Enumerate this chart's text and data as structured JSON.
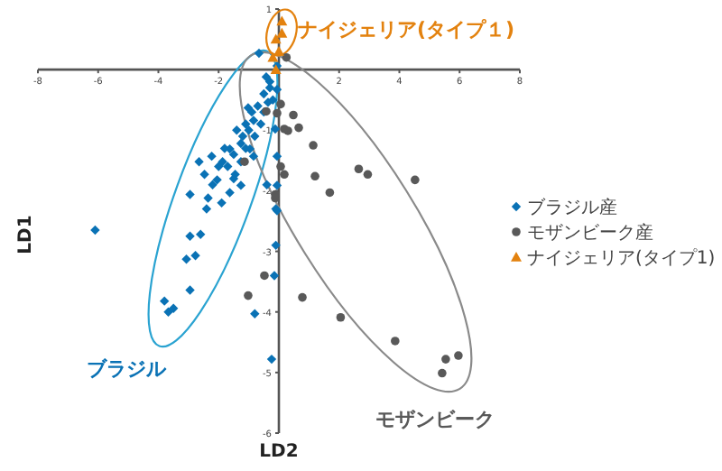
{
  "chart_data": {
    "type": "scatter",
    "xlabel": "LD2",
    "ylabel": "LD1",
    "xlim": [
      -8,
      8
    ],
    "ylim": [
      -6,
      1
    ],
    "xticks": [
      -8,
      -6,
      -4,
      -2,
      2,
      4,
      6,
      8
    ],
    "yticks": [
      1,
      -1,
      -2,
      -3,
      -4,
      -5,
      -6
    ],
    "grid": false,
    "legend": "right",
    "annotations": [
      "ナイジェリア(タイプ１)",
      "ブラジル",
      "モザンビーク"
    ],
    "series": [
      {
        "name": "ブラジル産",
        "color": "#0a72b5",
        "marker": "diamond",
        "x": [
          -6.1,
          -2.95,
          -2.6,
          -3.07,
          -2.77,
          -2.95,
          -3.8,
          -3.67,
          -3.5,
          -0.8,
          -0.24,
          -0.66,
          -0.06,
          -0.42,
          -0.06,
          -0.36,
          -0.84,
          -1.0,
          -1.26,
          -1.63,
          -1.87,
          -2.23,
          -2.47,
          -2.05,
          -2.65,
          -1.45,
          -1.26,
          -0.96,
          -0.84,
          -2.95,
          -2.35,
          -1.63,
          -1.26,
          -1.02,
          -0.12,
          -0.06,
          -0.3,
          -0.5,
          -0.7,
          -0.9,
          -1.1,
          -1.2,
          -1.4,
          -1.5,
          -1.7,
          -1.8,
          -2.0,
          -2.2,
          -0.6,
          -0.8,
          -1.1,
          -0.5,
          -0.2,
          -0.3,
          -2.4,
          -1.9,
          -1.5,
          -0.4,
          -0.1,
          -0.1,
          -0.15,
          -0.06,
          -0.06
        ],
        "values": [
          -2.65,
          -2.75,
          -2.72,
          -3.13,
          -3.07,
          -3.64,
          -3.82,
          -4.0,
          -3.94,
          -4.03,
          -4.78,
          0.27,
          0.06,
          -0.12,
          -0.33,
          -0.54,
          -0.84,
          -1.0,
          -1.22,
          -1.31,
          -1.52,
          -1.43,
          -1.73,
          -1.82,
          -1.52,
          -1.73,
          -1.52,
          -1.31,
          -1.43,
          -2.06,
          -2.12,
          -2.03,
          -1.91,
          -0.63,
          -0.98,
          -1.43,
          -0.3,
          -0.4,
          -0.6,
          -0.7,
          -0.9,
          -1.1,
          -1.0,
          -1.4,
          -1.6,
          -1.3,
          -1.6,
          -1.9,
          -0.9,
          -1.1,
          -1.3,
          -0.7,
          -0.5,
          -0.2,
          -2.3,
          -2.2,
          -1.8,
          -1.9,
          -2.3,
          -2.9,
          -3.4,
          -1.91,
          -2.33
        ]
      },
      {
        "name": "モザンビーク産",
        "color": "#595959",
        "marker": "circle",
        "x": [
          0.25,
          0.06,
          -0.06,
          0.48,
          0.3,
          0.66,
          0.18,
          1.14,
          0.06,
          0.18,
          1.2,
          1.69,
          2.65,
          2.95,
          4.52,
          -0.12,
          -0.42,
          -1.14,
          -0.12,
          -0.48,
          -1.02,
          0.78,
          2.05,
          3.86,
          5.54,
          5.96,
          5.42
        ],
        "values": [
          0.2,
          -0.57,
          -0.72,
          -0.75,
          -1.01,
          -0.96,
          -0.98,
          -1.25,
          -1.6,
          -1.73,
          -1.76,
          -2.03,
          -1.64,
          -1.73,
          -1.82,
          -2.12,
          -0.69,
          -1.52,
          -2.06,
          -3.4,
          -3.73,
          -3.76,
          -4.09,
          -4.48,
          -4.78,
          -4.72,
          -5.01
        ]
      },
      {
        "name": "ナイジェリア(タイプ1)",
        "color": "#e3820f",
        "marker": "triangle",
        "x": [
          -0.1,
          0.1,
          0.0,
          -0.2,
          0.1,
          -0.1
        ],
        "values": [
          0.5,
          0.6,
          0.3,
          0.2,
          0.8,
          0.0
        ]
      }
    ]
  }
}
